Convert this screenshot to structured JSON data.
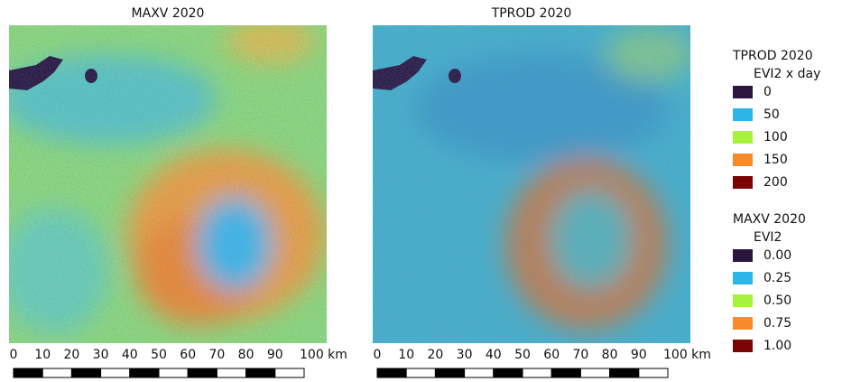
{
  "panels": [
    {
      "title": "MAXV 2020",
      "scale_labels": [
        "0",
        "10",
        "20",
        "30",
        "40",
        "50",
        "60",
        "70",
        "80",
        "90",
        "100 km"
      ]
    },
    {
      "title": "TPROD 2020",
      "scale_labels": [
        "0",
        "10",
        "20",
        "30",
        "40",
        "50",
        "60",
        "70",
        "80",
        "90",
        "100 km"
      ]
    }
  ],
  "legend": [
    {
      "title": "TPROD 2020",
      "unit": "EVI2 x day",
      "items": [
        {
          "label": "0",
          "color": "#2b1640"
        },
        {
          "label": "50",
          "color": "#2cb5e8"
        },
        {
          "label": "100",
          "color": "#a6f23c"
        },
        {
          "label": "150",
          "color": "#f98a2a"
        },
        {
          "label": "200",
          "color": "#7a0404"
        }
      ]
    },
    {
      "title": "MAXV 2020",
      "unit": "EVI2",
      "items": [
        {
          "label": "0.00",
          "color": "#2b1640"
        },
        {
          "label": "0.25",
          "color": "#2cb5e8"
        },
        {
          "label": "0.50",
          "color": "#a6f23c"
        },
        {
          "label": "0.75",
          "color": "#f98a2a"
        },
        {
          "label": "1.00",
          "color": "#7a0404"
        }
      ]
    }
  ]
}
